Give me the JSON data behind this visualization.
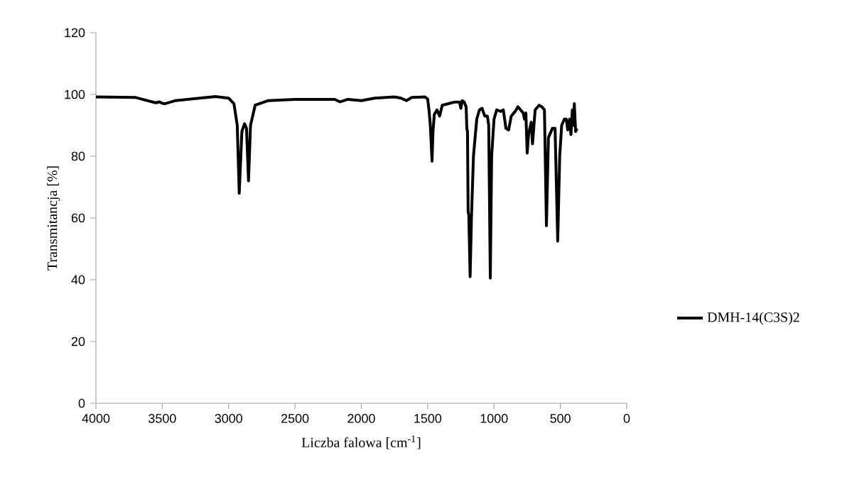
{
  "chart_data": {
    "type": "line",
    "xlabel": "Liczba falowa [cm$^{-1}$]",
    "ylabel": "Transmitancja [%]",
    "xlim": [
      4000,
      0
    ],
    "ylim": [
      0,
      120
    ],
    "xticks": [
      4000,
      3500,
      3000,
      2500,
      2000,
      1500,
      1000,
      500,
      0
    ],
    "yticks": [
      0,
      20,
      40,
      60,
      80,
      100,
      120
    ],
    "grid": false,
    "legend": "right",
    "marker": "none",
    "line_style": "solid",
    "series": [
      {
        "name": "DMH-14(C3S)2",
        "color": "#000000",
        "x": [
          4000,
          3700,
          3550,
          3520,
          3500,
          3480,
          3400,
          3100,
          3000,
          2960,
          2935,
          2920,
          2900,
          2880,
          2865,
          2850,
          2835,
          2800,
          2700,
          2500,
          2200,
          2160,
          2100,
          2000,
          1900,
          1750,
          1700,
          1660,
          1620,
          1520,
          1500,
          1490,
          1480,
          1467,
          1460,
          1450,
          1430,
          1410,
          1390,
          1300,
          1260,
          1250,
          1240,
          1225,
          1210,
          1205,
          1200,
          1195,
          1190,
          1180,
          1170,
          1155,
          1130,
          1110,
          1090,
          1070,
          1050,
          1040,
          1028,
          1018,
          1000,
          980,
          950,
          930,
          910,
          890,
          870,
          840,
          820,
          800,
          780,
          770,
          760,
          750,
          740,
          720,
          710,
          690,
          660,
          640,
          620,
          605,
          590,
          570,
          560,
          540,
          520,
          505,
          490,
          470,
          455,
          445,
          430,
          420,
          410,
          400,
          395,
          385,
          375
        ],
        "values": [
          99.2,
          99,
          97.3,
          97.6,
          97.1,
          97,
          98,
          99.3,
          98.8,
          97,
          90,
          68,
          88,
          90.5,
          89,
          72,
          90,
          96.5,
          98,
          98.4,
          98.4,
          97.6,
          98.4,
          98,
          98.8,
          99.2,
          98.8,
          98,
          99,
          99.2,
          98.5,
          95,
          90,
          78.4,
          88,
          93.5,
          95,
          93,
          96.5,
          97.5,
          97.5,
          95.5,
          98,
          97.5,
          96,
          89,
          88,
          62,
          61,
          41,
          60,
          80,
          92,
          95,
          95.5,
          93,
          93,
          90,
          40.5,
          80,
          92,
          95,
          94.5,
          95,
          89,
          88.5,
          93,
          94.5,
          96,
          95,
          94,
          92,
          94,
          81,
          87,
          91,
          84,
          95,
          96.5,
          96,
          95,
          57.5,
          86,
          88,
          89,
          89,
          52.5,
          80,
          90,
          92,
          92,
          88.5,
          92,
          87,
          95,
          90,
          97,
          88,
          89
        ]
      }
    ]
  }
}
